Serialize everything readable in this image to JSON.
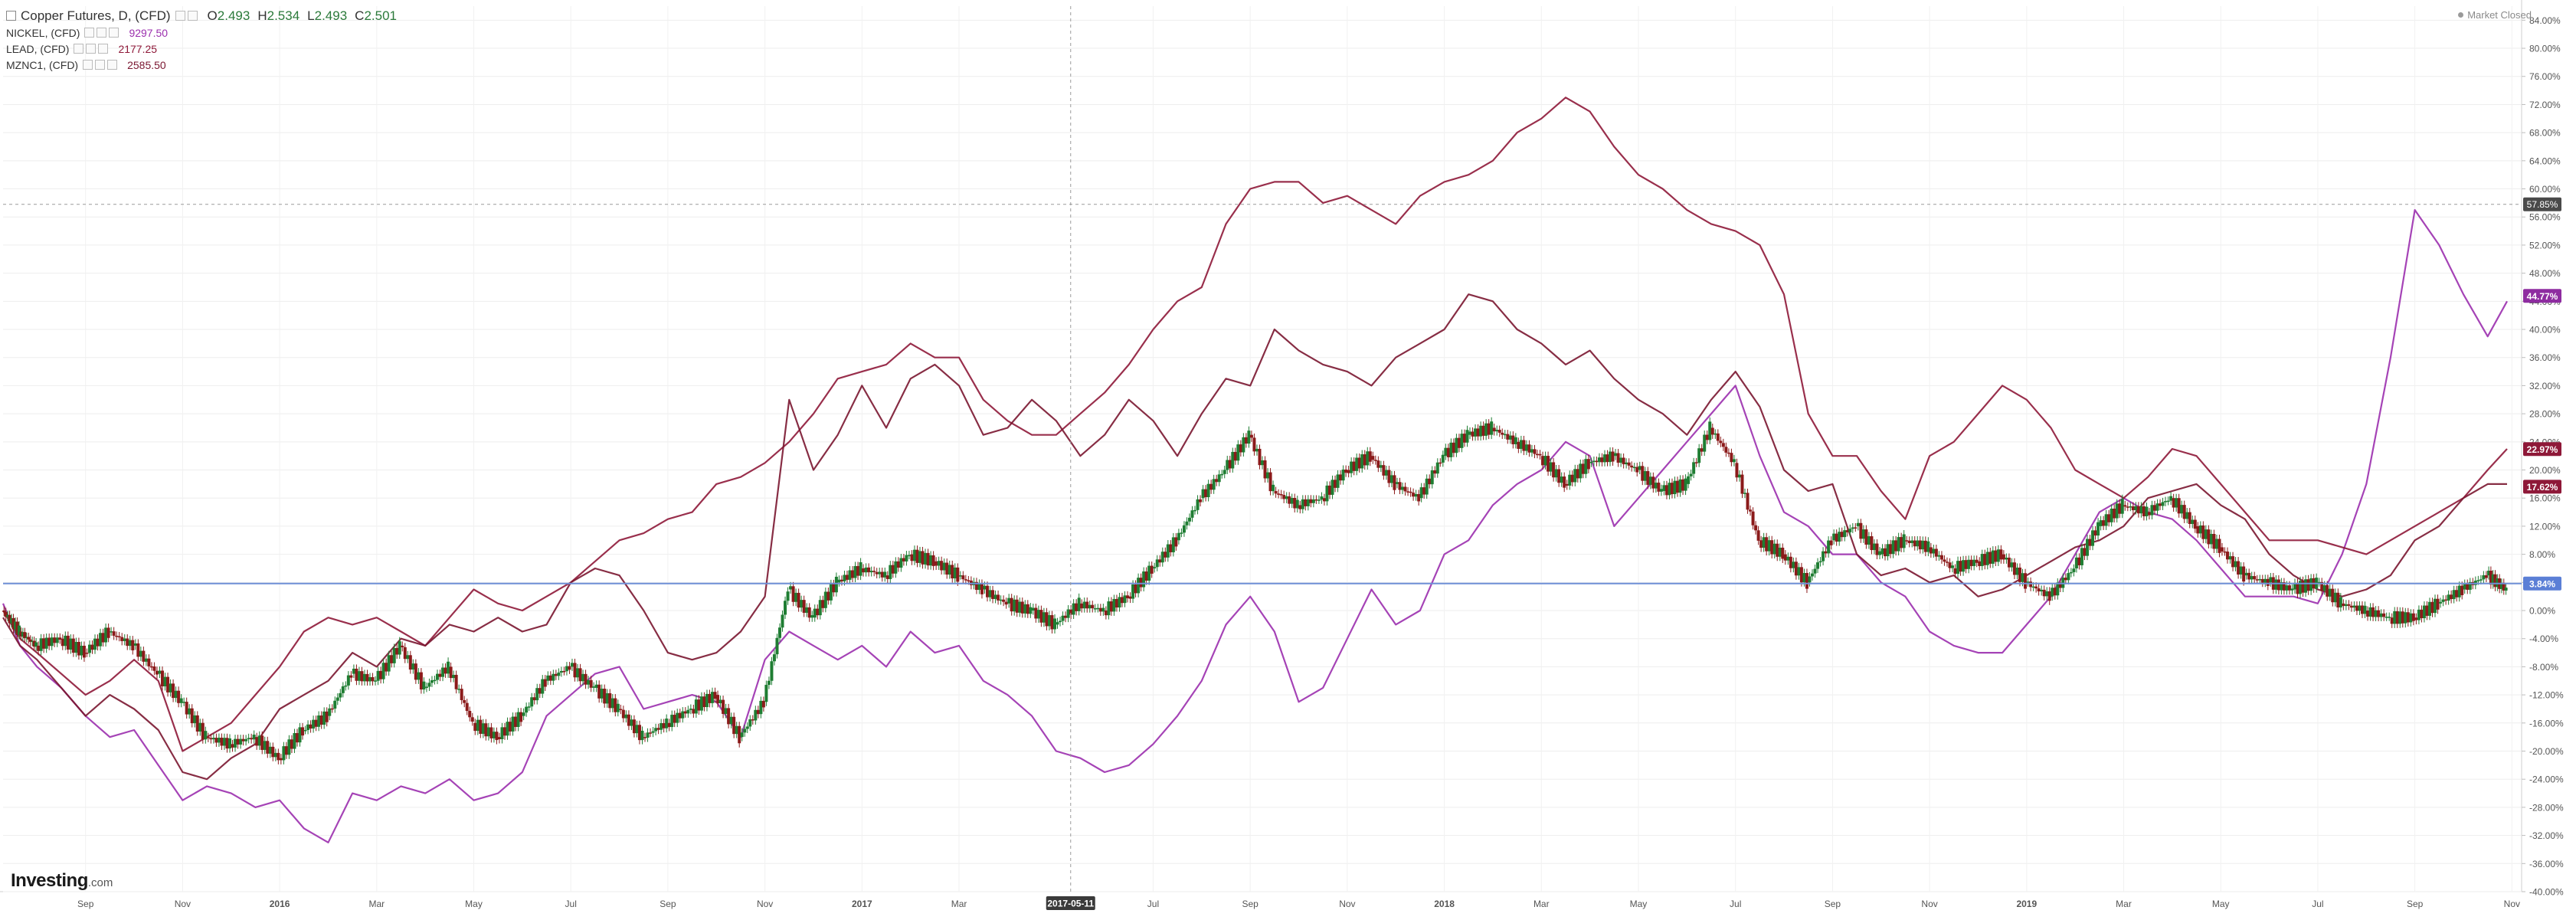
{
  "header": {
    "title": "Copper Futures, D, (CFD)",
    "ohlc": [
      {
        "k": "O",
        "v": "2.493"
      },
      {
        "k": "H",
        "v": "2.534"
      },
      {
        "k": "L",
        "v": "2.493"
      },
      {
        "k": "C",
        "v": "2.501"
      }
    ],
    "comparisons": [
      {
        "name": "NICKEL, (CFD)",
        "value": "9297.50",
        "color": "#9b2fae"
      },
      {
        "name": "LEAD, (CFD)",
        "value": "2177.25",
        "color": "#8e1838"
      },
      {
        "name": "MZNC1, (CFD)",
        "value": "2585.50",
        "color": "#7a1630"
      }
    ],
    "market_status": "Market Closed"
  },
  "branding": {
    "logo": "Investing",
    "logo_suffix": ".com"
  },
  "chart_data": {
    "type": "line",
    "title": "Copper Futures, D, (CFD)",
    "ylabel": "",
    "xlabel": "",
    "y_unit": "percent change",
    "ylim": [
      -40,
      86
    ],
    "y_ticks": [
      "-40.00%",
      "-36.00%",
      "-32.00%",
      "-28.00%",
      "-24.00%",
      "-20.00%",
      "-16.00%",
      "-12.00%",
      "-8.00%",
      "-4.00%",
      "0.00%",
      "4.00%",
      "8.00%",
      "12.00%",
      "16.00%",
      "20.00%",
      "24.00%",
      "28.00%",
      "32.00%",
      "36.00%",
      "40.00%",
      "44.00%",
      "48.00%",
      "52.00%",
      "56.00%",
      "60.00%",
      "64.00%",
      "68.00%",
      "72.00%",
      "76.00%",
      "80.00%",
      "84.00%"
    ],
    "x_ticks": [
      {
        "t": 1.0,
        "label": "Sep"
      },
      {
        "t": 3.0,
        "label": "Nov"
      },
      {
        "t": 5.0,
        "label": "2016",
        "bold": true
      },
      {
        "t": 7.0,
        "label": "Mar"
      },
      {
        "t": 9.0,
        "label": "May"
      },
      {
        "t": 11.0,
        "label": "Jul"
      },
      {
        "t": 13.0,
        "label": "Sep"
      },
      {
        "t": 15.0,
        "label": "Nov"
      },
      {
        "t": 17.0,
        "label": "2017",
        "bold": true
      },
      {
        "t": 19.0,
        "label": "Mar"
      },
      {
        "t": 23.0,
        "label": "Jul"
      },
      {
        "t": 25.0,
        "label": "Sep"
      },
      {
        "t": 27.0,
        "label": "Nov"
      },
      {
        "t": 29.0,
        "label": "2018",
        "bold": true
      },
      {
        "t": 31.0,
        "label": "Mar"
      },
      {
        "t": 33.0,
        "label": "May"
      },
      {
        "t": 35.0,
        "label": "Jul"
      },
      {
        "t": 37.0,
        "label": "Sep"
      },
      {
        "t": 39.0,
        "label": "Nov"
      },
      {
        "t": 41.0,
        "label": "2019",
        "bold": true
      },
      {
        "t": 43.0,
        "label": "Mar"
      },
      {
        "t": 45.0,
        "label": "May"
      },
      {
        "t": 47.0,
        "label": "Jul"
      },
      {
        "t": 49.0,
        "label": "Sep"
      },
      {
        "t": 51.0,
        "label": "Nov"
      }
    ],
    "x_range": [
      -0.7,
      51.2
    ],
    "crosshair": {
      "t": 21.3,
      "date_label": "2017-05-11",
      "y": 57.8,
      "y_label": "57.85%"
    },
    "baseline": {
      "y": 3.84,
      "label": "3.84%",
      "color": "#6f8fd6"
    },
    "price_labels": [
      {
        "y": 44.77,
        "label": "44.77%",
        "color": "#8e2ca0"
      },
      {
        "y": 22.97,
        "label": "22.97%",
        "color": "#8e1838"
      },
      {
        "y": 17.62,
        "label": "17.62%",
        "color": "#8e1838"
      },
      {
        "y": 3.84,
        "label": "3.84%",
        "color": "#5b7fd6"
      }
    ],
    "candle_colors": {
      "up": "#1e7d32",
      "down": "#8b1a1a"
    },
    "series": [
      {
        "name": "Copper Futures, D, (CFD)",
        "type": "candlestick",
        "color": "#2a2a2a",
        "x": [
          -0.7,
          -0.35,
          0,
          0.5,
          1,
          1.5,
          2,
          2.5,
          3,
          3.5,
          4,
          4.5,
          5,
          5.5,
          6,
          6.5,
          7,
          7.5,
          8,
          8.5,
          9,
          9.5,
          10,
          10.5,
          11,
          11.5,
          12,
          12.5,
          13,
          13.5,
          14,
          14.5,
          15,
          15.5,
          16,
          16.5,
          17,
          17.5,
          18,
          18.5,
          19,
          19.5,
          20,
          20.5,
          21,
          21.5,
          22,
          22.5,
          23,
          23.5,
          24,
          24.5,
          25,
          25.5,
          26,
          26.5,
          27,
          27.5,
          28,
          28.5,
          29,
          29.5,
          30,
          30.5,
          31,
          31.5,
          32,
          32.5,
          33,
          33.5,
          34,
          34.5,
          35,
          35.5,
          36,
          36.5,
          37,
          37.5,
          38,
          38.5,
          39,
          39.5,
          40,
          40.5,
          41,
          41.5,
          42,
          42.5,
          43,
          43.5,
          44,
          44.5,
          45,
          45.5,
          46,
          46.5,
          47,
          47.5,
          48,
          48.5,
          49,
          49.5,
          50,
          50.5,
          50.9
        ],
        "y": [
          0,
          -3,
          -5,
          -4,
          -6,
          -3,
          -5,
          -9,
          -13,
          -18,
          -19,
          -18,
          -21,
          -17,
          -15,
          -9,
          -10,
          -5,
          -11,
          -8,
          -16,
          -18,
          -15,
          -10,
          -8,
          -11,
          -14,
          -18,
          -16,
          -14,
          -12,
          -18,
          -13,
          3,
          -1,
          4,
          6,
          5,
          8,
          7,
          5,
          3,
          1,
          0,
          -2,
          1,
          0,
          2,
          6,
          10,
          16,
          20,
          25,
          17,
          15,
          16,
          20,
          22,
          18,
          16,
          22,
          25,
          26,
          24,
          22,
          18,
          21,
          22,
          20,
          17,
          18,
          26,
          21,
          10,
          8,
          4,
          10,
          12,
          8,
          10,
          9,
          6,
          7,
          8,
          4,
          2,
          6,
          12,
          15,
          14,
          16,
          12,
          9,
          5,
          4,
          3,
          4,
          1,
          0,
          -1,
          -1,
          1,
          3,
          5,
          3
        ]
      },
      {
        "name": "NICKEL, (CFD)",
        "type": "line",
        "color": "#9b2fae",
        "x": [
          -0.7,
          -0.35,
          0,
          0.5,
          1,
          1.5,
          2,
          2.5,
          3,
          3.5,
          4,
          4.5,
          5,
          5.5,
          6,
          6.5,
          7,
          7.5,
          8,
          8.5,
          9,
          9.5,
          10,
          10.5,
          11,
          11.5,
          12,
          12.5,
          13,
          13.5,
          14,
          14.5,
          15,
          15.5,
          16,
          16.5,
          17,
          17.5,
          18,
          18.5,
          19,
          19.5,
          20,
          20.5,
          21,
          21.5,
          22,
          22.5,
          23,
          23.5,
          24,
          24.5,
          25,
          25.5,
          26,
          26.5,
          27,
          27.5,
          28,
          28.5,
          29,
          29.5,
          30,
          30.5,
          31,
          31.5,
          32,
          32.5,
          33,
          33.5,
          34,
          34.5,
          35,
          35.5,
          36,
          36.5,
          37,
          37.5,
          38,
          38.5,
          39,
          39.5,
          40,
          40.5,
          41,
          41.5,
          42,
          42.5,
          43,
          43.5,
          44,
          44.5,
          45,
          45.5,
          46,
          46.5,
          47,
          47.5,
          48,
          48.5,
          49,
          49.5,
          50,
          50.5,
          50.9
        ],
        "y": [
          1,
          -5,
          -8,
          -11,
          -15,
          -18,
          -17,
          -22,
          -27,
          -25,
          -26,
          -28,
          -27,
          -31,
          -33,
          -26,
          -27,
          -25,
          -26,
          -24,
          -27,
          -26,
          -23,
          -15,
          -12,
          -9,
          -8,
          -14,
          -13,
          -12,
          -13,
          -18,
          -7,
          -3,
          -5,
          -7,
          -5,
          -8,
          -3,
          -6,
          -5,
          -10,
          -12,
          -15,
          -20,
          -21,
          -23,
          -22,
          -19,
          -15,
          -10,
          -2,
          2,
          -3,
          -13,
          -11,
          -4,
          3,
          -2,
          0,
          8,
          10,
          15,
          18,
          20,
          24,
          22,
          12,
          16,
          20,
          24,
          28,
          32,
          22,
          14,
          12,
          8,
          8,
          4,
          2,
          -3,
          -5,
          -6,
          -6,
          -2,
          2,
          8,
          14,
          16,
          14,
          13,
          10,
          6,
          2,
          2,
          2,
          1,
          8,
          18,
          36,
          57,
          52,
          45,
          39,
          44
        ]
      },
      {
        "name": "LEAD, (CFD)",
        "type": "line",
        "color": "#8e1838",
        "x": [
          -0.7,
          -0.35,
          0,
          0.5,
          1,
          1.5,
          2,
          2.5,
          3,
          3.5,
          4,
          4.5,
          5,
          5.5,
          6,
          6.5,
          7,
          7.5,
          8,
          8.5,
          9,
          9.5,
          10,
          10.5,
          11,
          11.5,
          12,
          12.5,
          13,
          13.5,
          14,
          14.5,
          15,
          15.5,
          16,
          16.5,
          17,
          17.5,
          18,
          18.5,
          19,
          19.5,
          20,
          20.5,
          21,
          21.5,
          22,
          22.5,
          23,
          23.5,
          24,
          24.5,
          25,
          25.5,
          26,
          26.5,
          27,
          27.5,
          28,
          28.5,
          29,
          29.5,
          30,
          30.5,
          31,
          31.5,
          32,
          32.5,
          33,
          33.5,
          34,
          34.5,
          35,
          35.5,
          36,
          36.5,
          37,
          37.5,
          38,
          38.5,
          39,
          39.5,
          40,
          40.5,
          41,
          41.5,
          42,
          42.5,
          43,
          43.5,
          44,
          44.5,
          45,
          45.5,
          46,
          46.5,
          47,
          47.5,
          48,
          48.5,
          49,
          49.5,
          50,
          50.5,
          50.9
        ],
        "y": [
          0,
          -4,
          -6,
          -9,
          -12,
          -10,
          -7,
          -10,
          -20,
          -18,
          -16,
          -12,
          -8,
          -3,
          -1,
          -2,
          -1,
          -3,
          -5,
          -1,
          3,
          1,
          0,
          2,
          4,
          7,
          10,
          11,
          13,
          14,
          18,
          19,
          21,
          24,
          28,
          33,
          34,
          35,
          38,
          36,
          36,
          30,
          27,
          25,
          25,
          28,
          31,
          35,
          40,
          44,
          46,
          55,
          60,
          61,
          61,
          58,
          59,
          57,
          55,
          59,
          61,
          62,
          64,
          68,
          70,
          73,
          71,
          66,
          62,
          60,
          57,
          55,
          54,
          52,
          45,
          28,
          22,
          22,
          17,
          13,
          22,
          24,
          28,
          32,
          30,
          26,
          20,
          18,
          16,
          19,
          23,
          22,
          18,
          14,
          10,
          10,
          10,
          9,
          8,
          10,
          12,
          14,
          16,
          20,
          23
        ]
      },
      {
        "name": "MZNC1, (CFD)",
        "type": "line",
        "color": "#7a1630",
        "x": [
          -0.7,
          -0.35,
          0,
          0.5,
          1,
          1.5,
          2,
          2.5,
          3,
          3.5,
          4,
          4.5,
          5,
          5.5,
          6,
          6.5,
          7,
          7.5,
          8,
          8.5,
          9,
          9.5,
          10,
          10.5,
          11,
          11.5,
          12,
          12.5,
          13,
          13.5,
          14,
          14.5,
          15,
          15.5,
          16,
          16.5,
          17,
          17.5,
          18,
          18.5,
          19,
          19.5,
          20,
          20.5,
          21,
          21.5,
          22,
          22.5,
          23,
          23.5,
          24,
          24.5,
          25,
          25.5,
          26,
          26.5,
          27,
          27.5,
          28,
          28.5,
          29,
          29.5,
          30,
          30.5,
          31,
          31.5,
          32,
          32.5,
          33,
          33.5,
          34,
          34.5,
          35,
          35.5,
          36,
          36.5,
          37,
          37.5,
          38,
          38.5,
          39,
          39.5,
          40,
          40.5,
          41,
          41.5,
          42,
          42.5,
          43,
          43.5,
          44,
          44.5,
          45,
          45.5,
          46,
          46.5,
          47,
          47.5,
          48,
          48.5,
          49,
          49.5,
          50,
          50.5,
          50.9
        ],
        "y": [
          -1,
          -5,
          -7,
          -11,
          -15,
          -12,
          -14,
          -17,
          -23,
          -24,
          -21,
          -19,
          -14,
          -12,
          -10,
          -6,
          -8,
          -4,
          -5,
          -2,
          -3,
          -1,
          -3,
          -2,
          4,
          6,
          5,
          0,
          -6,
          -7,
          -6,
          -3,
          2,
          30,
          20,
          25,
          32,
          26,
          33,
          35,
          32,
          25,
          26,
          30,
          27,
          22,
          25,
          30,
          27,
          22,
          28,
          33,
          32,
          40,
          37,
          35,
          34,
          32,
          36,
          38,
          40,
          45,
          44,
          40,
          38,
          35,
          37,
          33,
          30,
          28,
          25,
          30,
          34,
          29,
          20,
          17,
          18,
          8,
          5,
          6,
          4,
          5,
          2,
          3,
          5,
          7,
          9,
          10,
          12,
          16,
          17,
          18,
          15,
          13,
          8,
          5,
          3,
          2,
          3,
          5,
          10,
          12,
          16,
          18,
          18
        ]
      }
    ]
  }
}
